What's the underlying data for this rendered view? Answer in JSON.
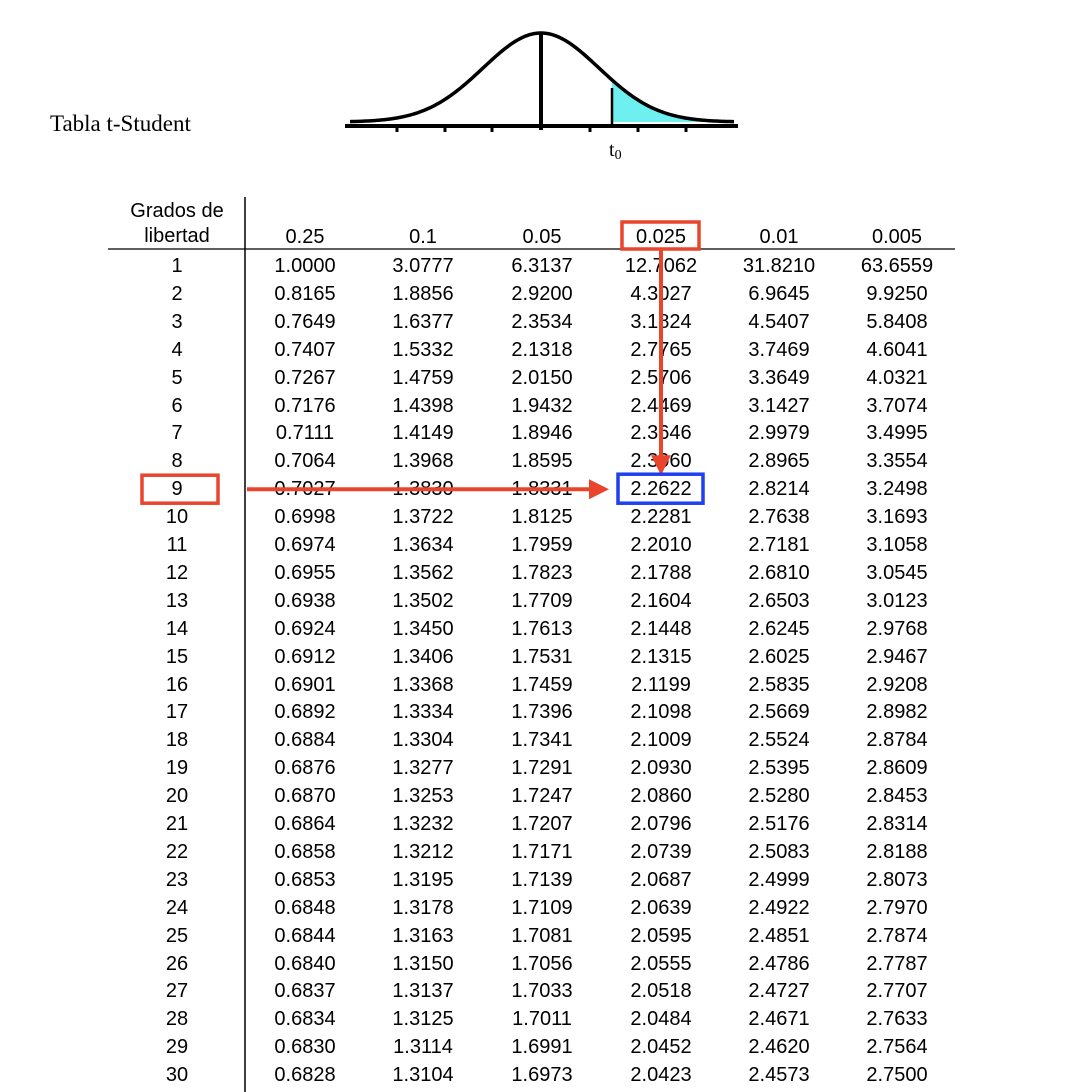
{
  "title": "Tabla t-Student",
  "diagram": {
    "t_label": "t",
    "t_subscript": "0",
    "shade_color": "#6ff0f0"
  },
  "table": {
    "df_header": [
      "Grados de",
      "libertad"
    ],
    "columns": [
      "0.25",
      "0.1",
      "0.05",
      "0.025",
      "0.01",
      "0.005"
    ],
    "rows": [
      {
        "df": "1",
        "values": [
          "1.0000",
          "3.0777",
          "6.3137",
          "12.7062",
          "31.8210",
          "63.6559"
        ]
      },
      {
        "df": "2",
        "values": [
          "0.8165",
          "1.8856",
          "2.9200",
          "4.3027",
          "6.9645",
          "9.9250"
        ]
      },
      {
        "df": "3",
        "values": [
          "0.7649",
          "1.6377",
          "2.3534",
          "3.1824",
          "4.5407",
          "5.8408"
        ]
      },
      {
        "df": "4",
        "values": [
          "0.7407",
          "1.5332",
          "2.1318",
          "2.7765",
          "3.7469",
          "4.6041"
        ]
      },
      {
        "df": "5",
        "values": [
          "0.7267",
          "1.4759",
          "2.0150",
          "2.5706",
          "3.3649",
          "4.0321"
        ]
      },
      {
        "df": "6",
        "values": [
          "0.7176",
          "1.4398",
          "1.9432",
          "2.4469",
          "3.1427",
          "3.7074"
        ]
      },
      {
        "df": "7",
        "values": [
          "0.7111",
          "1.4149",
          "1.8946",
          "2.3646",
          "2.9979",
          "3.4995"
        ]
      },
      {
        "df": "8",
        "values": [
          "0.7064",
          "1.3968",
          "1.8595",
          "2.3060",
          "2.8965",
          "3.3554"
        ]
      },
      {
        "df": "9",
        "values": [
          "0.7027",
          "1.3830",
          "1.8331",
          "2.2622",
          "2.8214",
          "3.2498"
        ]
      },
      {
        "df": "10",
        "values": [
          "0.6998",
          "1.3722",
          "1.8125",
          "2.2281",
          "2.7638",
          "3.1693"
        ]
      },
      {
        "df": "11",
        "values": [
          "0.6974",
          "1.3634",
          "1.7959",
          "2.2010",
          "2.7181",
          "3.1058"
        ]
      },
      {
        "df": "12",
        "values": [
          "0.6955",
          "1.3562",
          "1.7823",
          "2.1788",
          "2.6810",
          "3.0545"
        ]
      },
      {
        "df": "13",
        "values": [
          "0.6938",
          "1.3502",
          "1.7709",
          "2.1604",
          "2.6503",
          "3.0123"
        ]
      },
      {
        "df": "14",
        "values": [
          "0.6924",
          "1.3450",
          "1.7613",
          "2.1448",
          "2.6245",
          "2.9768"
        ]
      },
      {
        "df": "15",
        "values": [
          "0.6912",
          "1.3406",
          "1.7531",
          "2.1315",
          "2.6025",
          "2.9467"
        ]
      },
      {
        "df": "16",
        "values": [
          "0.6901",
          "1.3368",
          "1.7459",
          "2.1199",
          "2.5835",
          "2.9208"
        ]
      },
      {
        "df": "17",
        "values": [
          "0.6892",
          "1.3334",
          "1.7396",
          "2.1098",
          "2.5669",
          "2.8982"
        ]
      },
      {
        "df": "18",
        "values": [
          "0.6884",
          "1.3304",
          "1.7341",
          "2.1009",
          "2.5524",
          "2.8784"
        ]
      },
      {
        "df": "19",
        "values": [
          "0.6876",
          "1.3277",
          "1.7291",
          "2.0930",
          "2.5395",
          "2.8609"
        ]
      },
      {
        "df": "20",
        "values": [
          "0.6870",
          "1.3253",
          "1.7247",
          "2.0860",
          "2.5280",
          "2.8453"
        ]
      },
      {
        "df": "21",
        "values": [
          "0.6864",
          "1.3232",
          "1.7207",
          "2.0796",
          "2.5176",
          "2.8314"
        ]
      },
      {
        "df": "22",
        "values": [
          "0.6858",
          "1.3212",
          "1.7171",
          "2.0739",
          "2.5083",
          "2.8188"
        ]
      },
      {
        "df": "23",
        "values": [
          "0.6853",
          "1.3195",
          "1.7139",
          "2.0687",
          "2.4999",
          "2.8073"
        ]
      },
      {
        "df": "24",
        "values": [
          "0.6848",
          "1.3178",
          "1.7109",
          "2.0639",
          "2.4922",
          "2.7970"
        ]
      },
      {
        "df": "25",
        "values": [
          "0.6844",
          "1.3163",
          "1.7081",
          "2.0595",
          "2.4851",
          "2.7874"
        ]
      },
      {
        "df": "26",
        "values": [
          "0.6840",
          "1.3150",
          "1.7056",
          "2.0555",
          "2.4786",
          "2.7787"
        ]
      },
      {
        "df": "27",
        "values": [
          "0.6837",
          "1.3137",
          "1.7033",
          "2.0518",
          "2.4727",
          "2.7707"
        ]
      },
      {
        "df": "28",
        "values": [
          "0.6834",
          "1.3125",
          "1.7011",
          "2.0484",
          "2.4671",
          "2.7633"
        ]
      },
      {
        "df": "29",
        "values": [
          "0.6830",
          "1.3114",
          "1.6991",
          "2.0452",
          "2.4620",
          "2.7564"
        ]
      },
      {
        "df": "30",
        "values": [
          "0.6828",
          "1.3104",
          "1.6973",
          "2.0423",
          "2.4573",
          "2.7500"
        ]
      }
    ]
  },
  "highlight": {
    "row_df": "9",
    "column": "0.025",
    "result": "2.2622",
    "marker_color": "#e8452c",
    "result_box_color": "#1f3ff0"
  }
}
